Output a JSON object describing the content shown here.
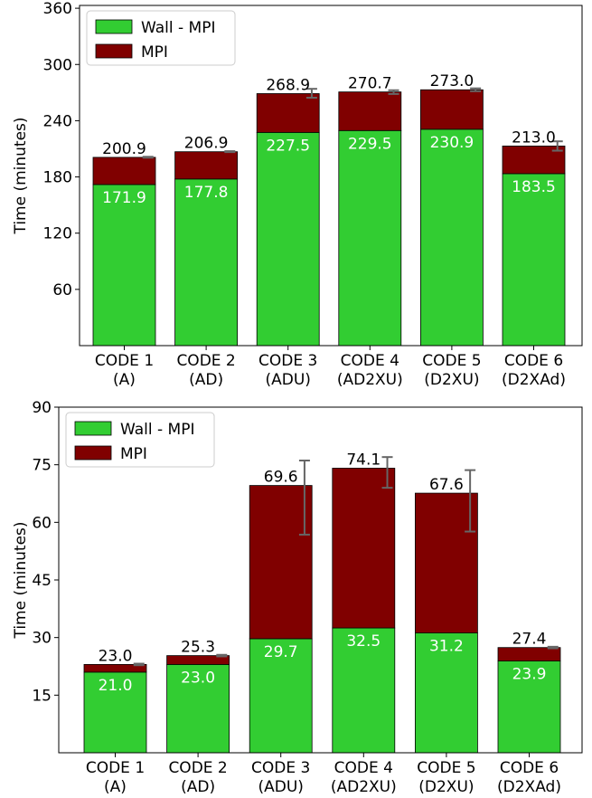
{
  "chart_data": [
    {
      "type": "bar",
      "stacked": true,
      "ylabel": "Time (minutes)",
      "ylim": [
        0,
        363
      ],
      "yticks": [
        60,
        120,
        180,
        240,
        300,
        360
      ],
      "categories": [
        "CODE 1\n(A)",
        "CODE 2\n(AD)",
        "CODE 3\n(ADU)",
        "CODE 4\n(AD2XU)",
        "CODE 5\n(D2XU)",
        "CODE 6\n(D2XAd)"
      ],
      "legend_position": "top-left",
      "series": [
        {
          "name": "Wall - MPI",
          "color": "#32cd32",
          "values": [
            171.9,
            177.8,
            227.5,
            229.5,
            230.9,
            183.5
          ]
        },
        {
          "name": "MPI",
          "color": "#800000",
          "values": [
            29.0,
            29.1,
            41.4,
            41.2,
            42.1,
            29.5
          ]
        }
      ],
      "totals": [
        200.9,
        206.9,
        268.9,
        270.7,
        273.0,
        213.0
      ],
      "total_labels": [
        "200.9",
        "206.9",
        "268.9",
        "270.7",
        "273.0",
        "213.0"
      ],
      "inner_labels": [
        "171.9",
        "177.8",
        "227.5",
        "229.5",
        "230.9",
        "183.5"
      ],
      "error_bars": [
        [
          200.5,
          201.5
        ],
        [
          206.5,
          207.5
        ],
        [
          264.5,
          274.0
        ],
        [
          268.5,
          272.5
        ],
        [
          271.5,
          274.5
        ],
        [
          208.0,
          218.0
        ]
      ],
      "grid": false
    },
    {
      "type": "bar",
      "stacked": true,
      "ylabel": "Time (minutes)",
      "ylim": [
        0,
        90
      ],
      "yticks": [
        15,
        30,
        45,
        60,
        75,
        90
      ],
      "categories": [
        "CODE 1\n(A)",
        "CODE 2\n(AD)",
        "CODE 3\n(ADU)",
        "CODE 4\n(AD2XU)",
        "CODE 5\n(D2XU)",
        "CODE 6\n(D2XAd)"
      ],
      "legend_position": "top-left",
      "series": [
        {
          "name": "Wall - MPI",
          "color": "#32cd32",
          "values": [
            21.0,
            23.0,
            29.7,
            32.5,
            31.2,
            23.9
          ]
        },
        {
          "name": "MPI",
          "color": "#800000",
          "values": [
            2.0,
            2.3,
            39.9,
            41.6,
            36.4,
            3.5
          ]
        }
      ],
      "totals": [
        23.0,
        25.3,
        69.6,
        74.1,
        67.6,
        27.4
      ],
      "total_labels": [
        "23.0",
        "25.3",
        "69.6",
        "74.1",
        "67.6",
        "27.4"
      ],
      "inner_labels": [
        "21.0",
        "23.0",
        "29.7",
        "32.5",
        "31.2",
        "23.9"
      ],
      "error_bars": [
        [
          22.8,
          23.2
        ],
        [
          25.1,
          25.5
        ],
        [
          56.8,
          76.1
        ],
        [
          69.0,
          77.0
        ],
        [
          57.6,
          73.6
        ],
        [
          27.2,
          27.6
        ]
      ],
      "grid": false
    }
  ]
}
